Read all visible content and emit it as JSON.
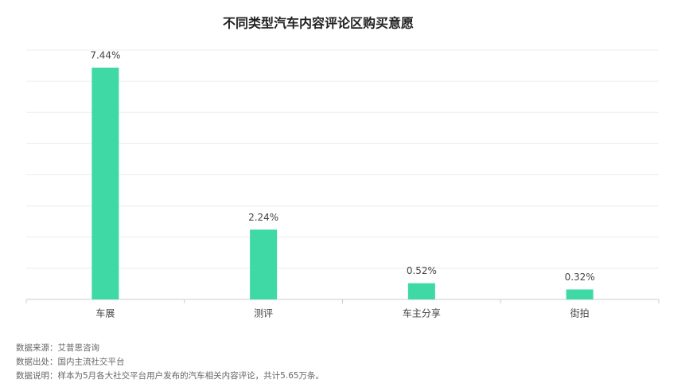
{
  "chart_data": {
    "type": "bar",
    "title": "不同类型汽车内容评论区购买意愿",
    "categories": [
      "车展",
      "测评",
      "车主分享",
      "街拍"
    ],
    "values": [
      7.44,
      2.24,
      0.52,
      0.32
    ],
    "value_labels": [
      "7.44%",
      "2.24%",
      "0.52%",
      "0.32%"
    ],
    "color": "#3ed9a4",
    "ylim": [
      0,
      8
    ],
    "yticks": [
      0,
      1,
      2,
      3,
      4,
      5,
      6,
      7,
      8
    ],
    "grid": true,
    "notes": [
      "数据来源：艾普思咨询",
      "数据出处：国内主流社交平台",
      "数据说明：样本为5月各大社交平台用户发布的汽车相关内容评论，共计5.65万条。"
    ]
  }
}
